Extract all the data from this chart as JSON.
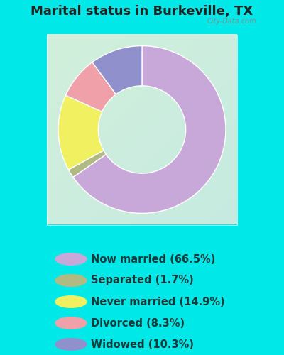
{
  "title": "Marital status in Burkeville, TX",
  "slices": [
    {
      "label": "Now married (66.5%)",
      "value": 66.5,
      "color": "#C8A8D8"
    },
    {
      "label": "Separated (1.7%)",
      "value": 1.7,
      "color": "#B0BA82"
    },
    {
      "label": "Never married (14.9%)",
      "value": 14.9,
      "color": "#F0F060"
    },
    {
      "label": "Divorced (8.3%)",
      "value": 8.3,
      "color": "#F0A0A8"
    },
    {
      "label": "Widowed (10.3%)",
      "value": 10.3,
      "color": "#9090CC"
    }
  ],
  "bg_outer": "#00E8E8",
  "title_color": "#222222",
  "legend_text_color": "#1A3A3A",
  "title_fontsize": 13,
  "legend_fontsize": 10.5,
  "watermark": "City-Data.com",
  "start_angle": 90,
  "gradient_topleft": [
    0.82,
    0.94,
    0.86
  ],
  "gradient_bottomright": [
    0.78,
    0.92,
    0.88
  ]
}
